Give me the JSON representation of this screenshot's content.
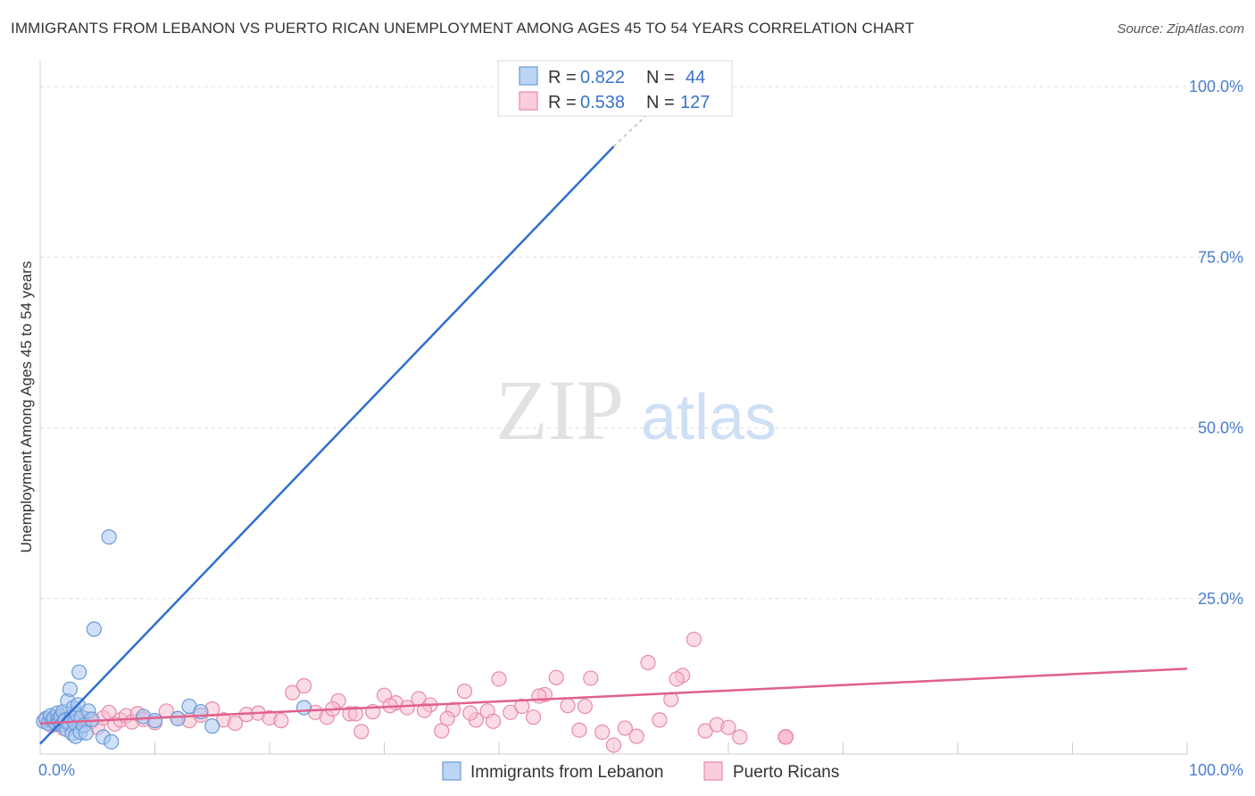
{
  "title": "IMMIGRANTS FROM LEBANON VS PUERTO RICAN UNEMPLOYMENT AMONG AGES 45 TO 54 YEARS CORRELATION CHART",
  "source": "Source: ZipAtlas.com",
  "watermark": {
    "zip": "ZIP",
    "atlas": "atlas"
  },
  "colors": {
    "blue_fill": "#a9c8f0",
    "blue_stroke": "#6a9ad8",
    "blue_line": "#2f6fd0",
    "pink_fill": "#f7bfd0",
    "pink_stroke": "#e88aa8",
    "pink_line": "#e0608e",
    "grid": "#dddddd",
    "tick_text": "#4a7fcf"
  },
  "legend": {
    "rows": [
      {
        "r_label": "R =",
        "r_value": "0.822",
        "n_label": "N =",
        "n_value": "44"
      },
      {
        "r_label": "R =",
        "r_value": "0.538",
        "n_label": "N =",
        "n_value": "127"
      }
    ]
  },
  "chart_data": {
    "type": "scatter",
    "title": "IMMIGRANTS FROM LEBANON VS PUERTO RICAN UNEMPLOYMENT AMONG AGES 45 TO 54 YEARS CORRELATION CHART",
    "xlabel": "",
    "ylabel": "Unemployment Among Ages 45 to 54 years",
    "xlim": [
      0,
      100
    ],
    "ylim": [
      0,
      100
    ],
    "x_tick_labels": [
      "0.0%",
      "100.0%"
    ],
    "y_tick_labels": [
      "100.0%",
      "75.0%",
      "50.0%",
      "25.0%"
    ],
    "y_ticks": [
      100,
      75,
      50,
      25
    ],
    "grid": true,
    "legend_position": "bottom",
    "series": [
      {
        "name": "Immigrants from Lebanon",
        "color": "blue",
        "R": 0.822,
        "N": 44,
        "trend": {
          "x": [
            0,
            50
          ],
          "y": [
            1.5,
            89
          ]
        },
        "trend_dashed": {
          "x": [
            50,
            55
          ],
          "y": [
            89,
            97
          ]
        },
        "points": [
          [
            0.3,
            4.8
          ],
          [
            0.5,
            5.2
          ],
          [
            0.7,
            4.5
          ],
          [
            0.9,
            5.6
          ],
          [
            1.1,
            4.9
          ],
          [
            1.2,
            5.3
          ],
          [
            1.4,
            4.4
          ],
          [
            1.5,
            6.0
          ],
          [
            1.6,
            5.1
          ],
          [
            1.7,
            4.7
          ],
          [
            1.8,
            5.5
          ],
          [
            1.9,
            4.3
          ],
          [
            2.0,
            6.2
          ],
          [
            2.1,
            4.8
          ],
          [
            2.2,
            5.0
          ],
          [
            2.3,
            3.6
          ],
          [
            2.4,
            7.8
          ],
          [
            2.5,
            4.5
          ],
          [
            2.6,
            9.5
          ],
          [
            2.7,
            5.3
          ],
          [
            2.8,
            3.0
          ],
          [
            2.9,
            6.8
          ],
          [
            3.0,
            4.6
          ],
          [
            3.1,
            2.6
          ],
          [
            3.2,
            5.8
          ],
          [
            3.3,
            7.2
          ],
          [
            3.4,
            12.0
          ],
          [
            3.5,
            3.2
          ],
          [
            3.6,
            5.4
          ],
          [
            3.8,
            4.2
          ],
          [
            4.0,
            3.1
          ],
          [
            4.2,
            6.3
          ],
          [
            4.5,
            5.1
          ],
          [
            4.7,
            18.3
          ],
          [
            5.5,
            2.5
          ],
          [
            6.0,
            31.8
          ],
          [
            6.2,
            1.8
          ],
          [
            9.0,
            5.5
          ],
          [
            10.0,
            4.9
          ],
          [
            12.0,
            5.2
          ],
          [
            13.0,
            7.0
          ],
          [
            14.0,
            6.2
          ],
          [
            15.0,
            4.1
          ],
          [
            23.0,
            6.8
          ]
        ]
      },
      {
        "name": "Puerto Ricans",
        "color": "pink",
        "R": 0.538,
        "N": 127,
        "trend": {
          "x": [
            0,
            100
          ],
          "y": [
            4.5,
            12.5
          ]
        },
        "points": [
          [
            0.5,
            5.0
          ],
          [
            1.0,
            4.2
          ],
          [
            1.5,
            5.5
          ],
          [
            2.0,
            3.8
          ],
          [
            2.5,
            4.6
          ],
          [
            3.0,
            5.8
          ],
          [
            3.5,
            4.1
          ],
          [
            4.0,
            5.2
          ],
          [
            4.5,
            4.8
          ],
          [
            5.0,
            3.9
          ],
          [
            5.5,
            5.3
          ],
          [
            6.0,
            6.1
          ],
          [
            6.5,
            4.4
          ],
          [
            7.0,
            5.0
          ],
          [
            7.5,
            5.6
          ],
          [
            8.0,
            4.7
          ],
          [
            8.5,
            5.9
          ],
          [
            9.0,
            5.1
          ],
          [
            10.0,
            4.6
          ],
          [
            11.0,
            6.3
          ],
          [
            12.0,
            5.2
          ],
          [
            13.0,
            4.9
          ],
          [
            14.0,
            5.7
          ],
          [
            15.0,
            6.6
          ],
          [
            16.0,
            5.0
          ],
          [
            17.0,
            4.5
          ],
          [
            18.0,
            5.8
          ],
          [
            19.0,
            6.0
          ],
          [
            20.0,
            5.3
          ],
          [
            21.0,
            4.9
          ],
          [
            22.0,
            9.0
          ],
          [
            23.0,
            10.0
          ],
          [
            24.0,
            6.1
          ],
          [
            25.0,
            5.4
          ],
          [
            26.0,
            7.8
          ],
          [
            27.0,
            5.9
          ],
          [
            28.0,
            3.3
          ],
          [
            29.0,
            6.2
          ],
          [
            30.0,
            8.6
          ],
          [
            31.0,
            7.5
          ],
          [
            32.0,
            6.8
          ],
          [
            33.0,
            8.1
          ],
          [
            34.0,
            7.2
          ],
          [
            35.0,
            3.4
          ],
          [
            36.0,
            6.5
          ],
          [
            37.0,
            9.2
          ],
          [
            38.0,
            5.0
          ],
          [
            39.0,
            6.3
          ],
          [
            40.0,
            11.0
          ],
          [
            41.0,
            6.1
          ],
          [
            42.0,
            7.0
          ],
          [
            43.0,
            5.4
          ],
          [
            44.0,
            8.7
          ],
          [
            45.0,
            11.2
          ],
          [
            46.0,
            7.1
          ],
          [
            47.0,
            3.5
          ],
          [
            48.0,
            11.1
          ],
          [
            49.0,
            3.2
          ],
          [
            50.0,
            1.3
          ],
          [
            51.0,
            3.8
          ],
          [
            52.0,
            2.6
          ],
          [
            53.0,
            13.4
          ],
          [
            54.0,
            5.0
          ],
          [
            55.0,
            8.0
          ],
          [
            56.0,
            11.5
          ],
          [
            57.0,
            16.8
          ],
          [
            58.0,
            3.4
          ],
          [
            59.0,
            4.3
          ],
          [
            60.0,
            3.9
          ],
          [
            61.0,
            2.5
          ],
          [
            37.5,
            6.0
          ],
          [
            43.5,
            8.5
          ],
          [
            47.5,
            7.0
          ],
          [
            55.5,
            11.0
          ],
          [
            39.5,
            4.8
          ],
          [
            25.5,
            6.6
          ],
          [
            27.5,
            5.9
          ],
          [
            30.5,
            7.1
          ],
          [
            33.5,
            6.4
          ],
          [
            35.5,
            5.2
          ],
          [
            65.0,
            2.5
          ],
          [
            65.0,
            2.5
          ],
          [
            65.0,
            2.5
          ],
          [
            65.0,
            2.5
          ],
          [
            65.0,
            2.5
          ],
          [
            65.0,
            2.5
          ],
          [
            65.0,
            2.5
          ],
          [
            65.0,
            2.5
          ],
          [
            65.0,
            2.5
          ],
          [
            65.0,
            2.5
          ],
          [
            65.0,
            2.5
          ],
          [
            65.0,
            2.5
          ],
          [
            65.0,
            2.5
          ],
          [
            65.0,
            2.5
          ],
          [
            65.0,
            2.5
          ],
          [
            65.0,
            2.5
          ],
          [
            65.0,
            2.5
          ],
          [
            65.0,
            2.5
          ],
          [
            65.0,
            2.5
          ],
          [
            65.0,
            2.5
          ],
          [
            65.0,
            2.5
          ],
          [
            65.0,
            2.5
          ],
          [
            65.0,
            2.5
          ],
          [
            65.0,
            2.5
          ],
          [
            65.0,
            2.5
          ],
          [
            65.0,
            2.5
          ],
          [
            65.0,
            2.5
          ],
          [
            65.0,
            2.5
          ],
          [
            65.0,
            2.5
          ],
          [
            65.0,
            2.5
          ],
          [
            65.0,
            2.5
          ],
          [
            65.0,
            2.5
          ],
          [
            65.0,
            2.5
          ],
          [
            65.0,
            2.5
          ],
          [
            65.0,
            2.5
          ],
          [
            65.0,
            2.5
          ],
          [
            65.0,
            2.5
          ],
          [
            65.0,
            2.5
          ]
        ]
      }
    ]
  }
}
